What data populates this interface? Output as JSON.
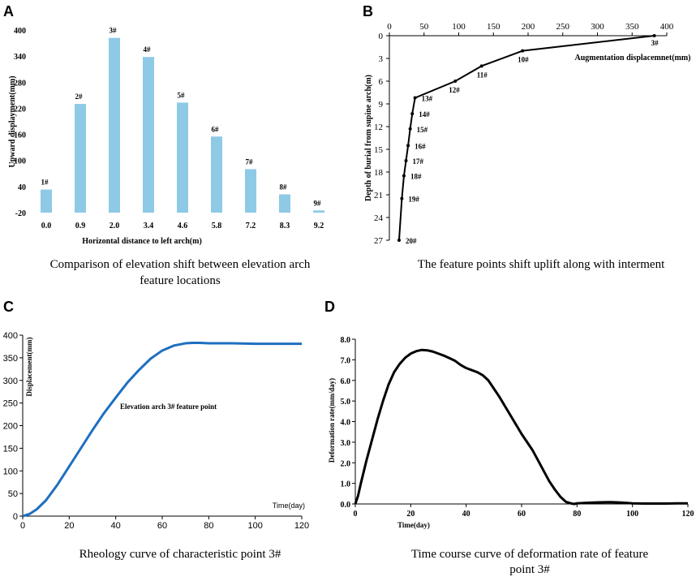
{
  "chart_data": [
    {
      "panel": "A",
      "type": "bar",
      "caption": "Comparison of elevation shift between elevation arch feature locations",
      "caption_lines": [
        "Comparison of elevation shift between elevation arch",
        "feature locations"
      ],
      "xlabel": "Horizontal distance to left arch(m)",
      "ylabel": "Upward displayment(mm)",
      "categories": [
        "0.0",
        "0.9",
        "2.0",
        "3.4",
        "4.6",
        "5.8",
        "7.2",
        "8.3",
        "9.2"
      ],
      "labels": [
        "1#",
        "2#",
        "3#",
        "4#",
        "5#",
        "6#",
        "7#",
        "8#",
        "9#"
      ],
      "values": [
        33,
        230,
        382,
        338,
        233,
        155,
        80,
        22,
        -15
      ],
      "ylim": [
        -20,
        400
      ],
      "yticks": [
        "-20",
        "40",
        "100",
        "160",
        "220",
        "280",
        "340",
        "400"
      ],
      "color": "#8ecae6"
    },
    {
      "panel": "B",
      "type": "line",
      "caption": "The feature points shift uplift along with interment",
      "xlabel": "Augmentation displacemnet(mm)",
      "ylabel": "Depth of burial from supine arch(m)",
      "xticks": [
        "0",
        "50",
        "100",
        "150",
        "200",
        "250",
        "300",
        "350",
        "400"
      ],
      "yticks": [
        "0",
        "3",
        "6",
        "9",
        "12",
        "15",
        "18",
        "21",
        "24",
        "27"
      ],
      "xlim": [
        0,
        400
      ],
      "ylim": [
        0,
        27
      ],
      "points": [
        {
          "label": "3#",
          "x": 382,
          "y": 0
        },
        {
          "label": "10#",
          "x": 192,
          "y": 2
        },
        {
          "label": "11#",
          "x": 133,
          "y": 4
        },
        {
          "label": "12#",
          "x": 95,
          "y": 6
        },
        {
          "label": "13#",
          "x": 37,
          "y": 8.2
        },
        {
          "label": "14#",
          "x": 33,
          "y": 10.3
        },
        {
          "label": "15#",
          "x": 30,
          "y": 12.3
        },
        {
          "label": "16#",
          "x": 27,
          "y": 14.5
        },
        {
          "label": "17#",
          "x": 24,
          "y": 16.5
        },
        {
          "label": "18#",
          "x": 21,
          "y": 18.5
        },
        {
          "label": "19#",
          "x": 18,
          "y": 21.5
        },
        {
          "label": "20#",
          "x": 14,
          "y": 27
        }
      ]
    },
    {
      "panel": "C",
      "type": "line",
      "caption": "Rheology curve of characteristic point 3#",
      "xlabel": "Time(day)",
      "ylabel": "Displacement(mm)",
      "annotation": "Elevation arch 3# feature point",
      "xticks": [
        "0",
        "20",
        "40",
        "60",
        "80",
        "100",
        "120"
      ],
      "yticks": [
        "0",
        "50",
        "100",
        "150",
        "200",
        "250",
        "300",
        "350",
        "400"
      ],
      "xlim": [
        0,
        120
      ],
      "ylim": [
        0,
        400
      ],
      "x": [
        0,
        3,
        6,
        10,
        15,
        20,
        25,
        30,
        35,
        40,
        45,
        50,
        55,
        60,
        65,
        70,
        73,
        76,
        80,
        90,
        100,
        110,
        120
      ],
      "y": [
        0,
        5,
        15,
        35,
        70,
        110,
        150,
        190,
        228,
        262,
        295,
        323,
        348,
        366,
        377,
        382,
        383,
        383,
        382,
        382,
        381,
        381,
        381
      ],
      "color": "#1f6fbf"
    },
    {
      "panel": "D",
      "type": "line",
      "caption": "Time course curve of deformation rate of feature point 3#",
      "caption_lines": [
        "Time course curve of deformation rate of feature",
        "point 3#"
      ],
      "xlabel": "Time(day)",
      "ylabel": "Deformation rate(mm/day)",
      "xticks": [
        "0",
        "20",
        "40",
        "60",
        "80",
        "100",
        "120"
      ],
      "yticks": [
        "0.0",
        "1.0",
        "2.0",
        "3.0",
        "4.0",
        "5.0",
        "6.0",
        "7.0",
        "8.0"
      ],
      "xlim": [
        0,
        120
      ],
      "ylim": [
        0,
        8
      ],
      "x": [
        0,
        1,
        2,
        4,
        6,
        8,
        10,
        12,
        14,
        16,
        18,
        20,
        22,
        24,
        26,
        28,
        30,
        32,
        34,
        36,
        38,
        40,
        42,
        44,
        46,
        48,
        50,
        52,
        54,
        56,
        58,
        60,
        62,
        64,
        66,
        68,
        70,
        72,
        74,
        76,
        78,
        79,
        80,
        84,
        88,
        92,
        96,
        100,
        104,
        108,
        112,
        116,
        120
      ],
      "y": [
        0,
        0.4,
        1.0,
        2.1,
        3.1,
        4.1,
        5.0,
        5.8,
        6.4,
        6.8,
        7.1,
        7.3,
        7.42,
        7.48,
        7.46,
        7.4,
        7.3,
        7.2,
        7.08,
        6.95,
        6.75,
        6.6,
        6.5,
        6.4,
        6.25,
        6.0,
        5.6,
        5.2,
        4.75,
        4.3,
        3.85,
        3.4,
        3.0,
        2.6,
        2.1,
        1.6,
        1.1,
        0.7,
        0.35,
        0.1,
        0.02,
        0.0,
        0.03,
        0.06,
        0.08,
        0.09,
        0.07,
        0.03,
        0.02,
        0.02,
        0.02,
        0.03,
        0.03
      ],
      "color": "#000000"
    }
  ],
  "panel_letters": [
    "A",
    "B",
    "C",
    "D"
  ]
}
